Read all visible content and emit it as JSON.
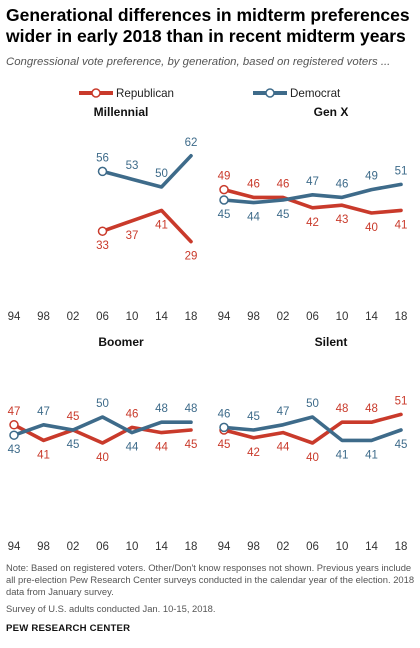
{
  "header": {
    "title": "Generational differences in midterm preferences wider in early 2018 than in recent midterm years",
    "subtitle": "Congressional vote preference, by generation, based on registered voters ..."
  },
  "legend": {
    "republican": "Republican",
    "democrat": "Democrat"
  },
  "colors": {
    "republican": "#c93a2b",
    "democrat": "#3e6b8a"
  },
  "chart_data": [
    {
      "type": "line",
      "title": "Millennial",
      "categories": [
        "94",
        "98",
        "02",
        "06",
        "10",
        "14",
        "18"
      ],
      "ylim": [
        0,
        100
      ],
      "series": [
        {
          "name": "Republican",
          "values": [
            null,
            null,
            null,
            33,
            37,
            41,
            29
          ]
        },
        {
          "name": "Democrat",
          "values": [
            null,
            null,
            null,
            56,
            53,
            50,
            62
          ]
        }
      ]
    },
    {
      "type": "line",
      "title": "Gen X",
      "categories": [
        "94",
        "98",
        "02",
        "06",
        "10",
        "14",
        "18"
      ],
      "ylim": [
        0,
        100
      ],
      "series": [
        {
          "name": "Republican",
          "values": [
            49,
            46,
            46,
            42,
            43,
            40,
            41
          ]
        },
        {
          "name": "Democrat",
          "values": [
            45,
            44,
            45,
            47,
            46,
            49,
            51
          ]
        }
      ]
    },
    {
      "type": "line",
      "title": "Boomer",
      "categories": [
        "94",
        "98",
        "02",
        "06",
        "10",
        "14",
        "18"
      ],
      "ylim": [
        0,
        100
      ],
      "series": [
        {
          "name": "Republican",
          "values": [
            47,
            41,
            45,
            40,
            46,
            44,
            45
          ]
        },
        {
          "name": "Democrat",
          "values": [
            43,
            47,
            45,
            50,
            44,
            48,
            48
          ]
        }
      ]
    },
    {
      "type": "line",
      "title": "Silent",
      "categories": [
        "94",
        "98",
        "02",
        "06",
        "10",
        "14",
        "18"
      ],
      "ylim": [
        0,
        100
      ],
      "series": [
        {
          "name": "Republican",
          "values": [
            45,
            42,
            44,
            40,
            48,
            48,
            51
          ]
        },
        {
          "name": "Democrat",
          "values": [
            46,
            45,
            47,
            50,
            41,
            41,
            45
          ]
        }
      ]
    }
  ],
  "notes": "Note: Based on registered voters. Other/Don't know responses not shown. Previous years include all pre-election Pew Research Center surveys conducted in the calendar year of the election. 2018 data from January survey.",
  "source": "Survey of U.S. adults conducted Jan. 10-15, 2018.",
  "org": "PEW RESEARCH CENTER"
}
